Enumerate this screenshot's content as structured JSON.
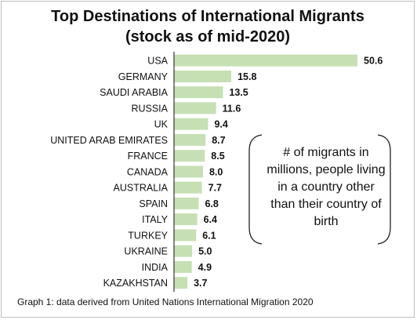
{
  "chart_data": {
    "type": "bar",
    "orientation": "horizontal",
    "title": "Top Destinations of International Migrants",
    "subtitle": "(stock as of mid-2020)",
    "categories": [
      "USA",
      "GERMANY",
      "SAUDI ARABIA",
      "RUSSIA",
      "UK",
      "UNITED ARAB EMIRATES",
      "FRANCE",
      "CANADA",
      "AUSTRALIA",
      "SPAIN",
      "ITALY",
      "TURKEY",
      "UKRAINE",
      "INDIA",
      "KAZAKHSTAN"
    ],
    "values": [
      50.6,
      15.8,
      13.5,
      11.6,
      9.4,
      8.7,
      8.5,
      8.0,
      7.7,
      6.8,
      6.4,
      6.1,
      5.0,
      4.9,
      3.7
    ],
    "value_labels": [
      "50.6",
      "15.8",
      "13.5",
      "11.6",
      "9.4",
      "8.7",
      "8.5",
      "8.0",
      "7.7",
      "6.8",
      "6.4",
      "6.1",
      "5.0",
      "4.9",
      "3.7"
    ],
    "xlabel": "",
    "ylabel": "",
    "xlim": [
      0,
      50.6
    ],
    "grid": false,
    "legend": "none",
    "bar_color": "#c6e0b4",
    "annotation": "# of migrants in millions, people living in a country other than their country of birth"
  },
  "caption": "Graph 1: data derived from United Nations International Migration 2020"
}
